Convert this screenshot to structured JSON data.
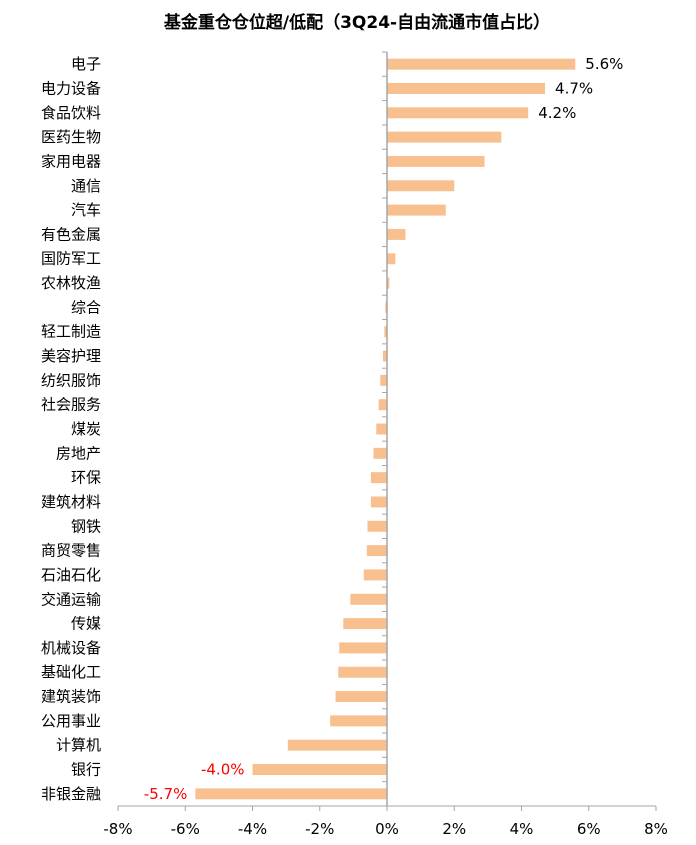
{
  "chart_data": {
    "type": "bar",
    "orientation": "horizontal",
    "title": "基金重仓仓位超/低配（3Q24-自由流通市值占比）",
    "categories": [
      "电子",
      "电力设备",
      "食品饮料",
      "医药生物",
      "家用电器",
      "通信",
      "汽车",
      "有色金属",
      "国防军工",
      "农林牧渔",
      "综合",
      "轻工制造",
      "美容护理",
      "纺织服饰",
      "社会服务",
      "煤炭",
      "房地产",
      "环保",
      "建筑材料",
      "钢铁",
      "商贸零售",
      "石油石化",
      "交通运输",
      "传媒",
      "机械设备",
      "基础化工",
      "建筑装饰",
      "公用事业",
      "计算机",
      "银行",
      "非银金融"
    ],
    "values": [
      5.6,
      4.7,
      4.2,
      3.4,
      2.9,
      2.0,
      1.75,
      0.55,
      0.25,
      0.07,
      -0.05,
      -0.08,
      -0.12,
      -0.2,
      -0.25,
      -0.32,
      -0.4,
      -0.48,
      -0.48,
      -0.58,
      -0.6,
      -0.69,
      -1.09,
      -1.3,
      -1.42,
      -1.45,
      -1.53,
      -1.69,
      -2.95,
      -4.0,
      -5.7
    ],
    "data_labels": {
      "电子": "5.6%",
      "电力设备": "4.7%",
      "食品饮料": "4.2%",
      "银行": "-4.0%",
      "非银金融": "-5.7%"
    },
    "xlim": [
      -8,
      8
    ],
    "xticks": [
      "-8%",
      "-6%",
      "-4%",
      "-2%",
      "0%",
      "2%",
      "4%",
      "6%",
      "8%"
    ],
    "xtick_values": [
      -8,
      -6,
      -4,
      -2,
      0,
      2,
      4,
      6,
      8
    ],
    "unit": "%",
    "grid": false,
    "legend": "none",
    "colors": {
      "bar": "#F9C08F",
      "positive_label": "#000000",
      "negative_label": "#FF0000",
      "axis": "#A6A6A6"
    }
  }
}
